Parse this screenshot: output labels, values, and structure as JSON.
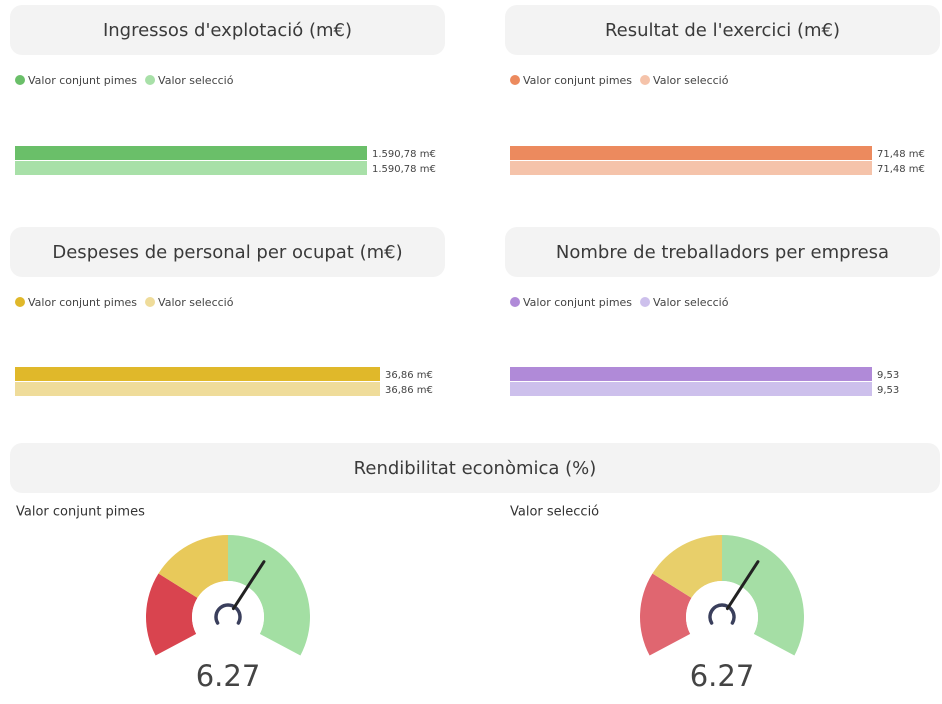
{
  "chart_data": [
    {
      "type": "bar",
      "title": "Ingressos d'explotació (m€)",
      "series": [
        {
          "name": "Valor conjunt pimes",
          "color": "#6abf69",
          "values": [
            1590.78
          ],
          "value_labels": [
            "1.590,78 m€"
          ]
        },
        {
          "name": "Valor selecció",
          "color": "#a8e0a8",
          "values": [
            1590.78
          ],
          "value_labels": [
            "1.590,78 m€"
          ]
        }
      ]
    },
    {
      "type": "bar",
      "title": "Resultat de l'exercici (m€)",
      "series": [
        {
          "name": "Valor conjunt pimes",
          "color": "#ec8a5e",
          "values": [
            71.48
          ],
          "value_labels": [
            "71,48 m€"
          ]
        },
        {
          "name": "Valor selecció",
          "color": "#f5c3aa",
          "values": [
            71.48
          ],
          "value_labels": [
            "71,48 m€"
          ]
        }
      ]
    },
    {
      "type": "bar",
      "title": "Despeses de personal per ocupat (m€)",
      "series": [
        {
          "name": "Valor conjunt pimes",
          "color": "#e0b82a",
          "values": [
            36.86
          ],
          "value_labels": [
            "36,86 m€"
          ]
        },
        {
          "name": "Valor selecció",
          "color": "#efdc9a",
          "values": [
            36.86
          ],
          "value_labels": [
            "36,86 m€"
          ]
        }
      ]
    },
    {
      "type": "bar",
      "title": "Nombre de treballadors per empresa",
      "series": [
        {
          "name": "Valor conjunt pimes",
          "color": "#b08ad8",
          "values": [
            9.53
          ],
          "value_labels": [
            "9,53"
          ]
        },
        {
          "name": "Valor selecció",
          "color": "#cdc0ec",
          "values": [
            9.53
          ],
          "value_labels": [
            "9,53"
          ]
        }
      ]
    },
    {
      "type": "gauge",
      "title": "Rendibilitat econòmica (%)",
      "gauges": [
        {
          "name": "Valor conjunt pimes",
          "value": 6.27,
          "colors": [
            "#d9444f",
            "#e8c95a",
            "#a3dfa3"
          ]
        },
        {
          "name": "Valor selecció",
          "value": 6.27,
          "colors": [
            "#e06670",
            "#e8cf6a",
            "#a5dea5"
          ]
        }
      ]
    }
  ]
}
